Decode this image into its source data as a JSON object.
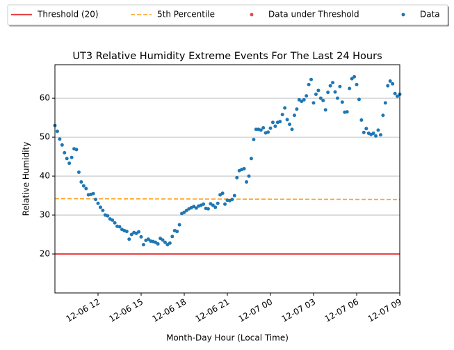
{
  "chart_data": {
    "type": "scatter",
    "title": "UT3 Relative Humidity Extreme Events For The Last 24 Hours",
    "x_label": "Month-Day Hour (Local Time)",
    "y_label": "Relative Humidity",
    "xlim": [
      "12-06 09",
      "12-07 09"
    ],
    "ylim": [
      10,
      68.6
    ],
    "xticks": [
      "12-06 12",
      "12-06 15",
      "12-06 18",
      "12-06 21",
      "12-07 00",
      "12-07 03",
      "12-07 06",
      "12-07 09"
    ],
    "yticks": [
      20,
      30,
      40,
      50,
      60
    ],
    "grid": true,
    "legend": "top",
    "series": [
      {
        "name": "Threshold (20)",
        "type": "line",
        "style": "solid",
        "color": "#e8474b",
        "x": [
          "12-06 09:00",
          "12-07 09:00"
        ],
        "values": [
          20,
          20
        ]
      },
      {
        "name": "5th Percentile",
        "type": "line",
        "style": "dashed",
        "color": "#ffa01c",
        "x": [
          "12-06 09:00",
          "12-07 09:00"
        ],
        "values": [
          34.2,
          34.0
        ]
      },
      {
        "name": "Data under Threshold",
        "type": "scatter",
        "color": "#e0504a",
        "x": [],
        "values": []
      },
      {
        "name": "Data",
        "type": "scatter",
        "color": "#1f77b4",
        "x": [
          "12-06 09:00",
          "12-06 09:10",
          "12-06 09:20",
          "12-06 09:30",
          "12-06 09:40",
          "12-06 09:50",
          "12-06 10:00",
          "12-06 10:10",
          "12-06 10:20",
          "12-06 10:30",
          "12-06 10:40",
          "12-06 10:50",
          "12-06 11:00",
          "12-06 11:10",
          "12-06 11:20",
          "12-06 11:30",
          "12-06 11:40",
          "12-06 11:50",
          "12-06 12:00",
          "12-06 12:10",
          "12-06 12:20",
          "12-06 12:30",
          "12-06 12:40",
          "12-06 12:50",
          "12-06 13:00",
          "12-06 13:10",
          "12-06 13:20",
          "12-06 13:30",
          "12-06 13:40",
          "12-06 13:50",
          "12-06 14:00",
          "12-06 14:10",
          "12-06 14:20",
          "12-06 14:30",
          "12-06 14:40",
          "12-06 14:50",
          "12-06 15:00",
          "12-06 15:10",
          "12-06 15:20",
          "12-06 15:30",
          "12-06 15:40",
          "12-06 15:50",
          "12-06 16:00",
          "12-06 16:10",
          "12-06 16:20",
          "12-06 16:30",
          "12-06 16:40",
          "12-06 16:50",
          "12-06 17:00",
          "12-06 17:10",
          "12-06 17:20",
          "12-06 17:30",
          "12-06 17:40",
          "12-06 17:50",
          "12-06 18:00",
          "12-06 18:10",
          "12-06 18:20",
          "12-06 18:30",
          "12-06 18:40",
          "12-06 18:50",
          "12-06 19:00",
          "12-06 19:10",
          "12-06 19:20",
          "12-06 19:30",
          "12-06 19:40",
          "12-06 19:50",
          "12-06 20:00",
          "12-06 20:10",
          "12-06 20:20",
          "12-06 20:30",
          "12-06 20:40",
          "12-06 20:50",
          "12-06 21:00",
          "12-06 21:10",
          "12-06 21:20",
          "12-06 21:30",
          "12-06 21:40",
          "12-06 21:50",
          "12-06 22:00",
          "12-06 22:10",
          "12-06 22:20",
          "12-06 22:30",
          "12-06 22:40",
          "12-06 22:50",
          "12-06 23:00",
          "12-06 23:10",
          "12-06 23:20",
          "12-06 23:30",
          "12-06 23:40",
          "12-06 23:50",
          "12-07 00:00",
          "12-07 00:10",
          "12-07 00:20",
          "12-07 00:30",
          "12-07 00:40",
          "12-07 00:50",
          "12-07 01:00",
          "12-07 01:10",
          "12-07 01:20",
          "12-07 01:30",
          "12-07 01:40",
          "12-07 01:50",
          "12-07 02:00",
          "12-07 02:10",
          "12-07 02:20",
          "12-07 02:30",
          "12-07 02:40",
          "12-07 02:50",
          "12-07 03:00",
          "12-07 03:10",
          "12-07 03:20",
          "12-07 03:30",
          "12-07 03:40",
          "12-07 03:50",
          "12-07 04:00",
          "12-07 04:10",
          "12-07 04:20",
          "12-07 04:30",
          "12-07 04:40",
          "12-07 04:50",
          "12-07 05:00",
          "12-07 05:10",
          "12-07 05:20",
          "12-07 05:30",
          "12-07 05:40",
          "12-07 05:50",
          "12-07 06:00",
          "12-07 06:10",
          "12-07 06:20",
          "12-07 06:30",
          "12-07 06:40",
          "12-07 06:50",
          "12-07 07:00",
          "12-07 07:10",
          "12-07 07:20",
          "12-07 07:30",
          "12-07 07:40",
          "12-07 07:50",
          "12-07 08:00",
          "12-07 08:10",
          "12-07 08:20",
          "12-07 08:30",
          "12-07 08:40",
          "12-07 08:50",
          "12-07 09:00"
        ],
        "values": [
          53,
          51.5,
          49.5,
          48,
          46,
          44.5,
          43.3,
          44.8,
          47,
          46.8,
          41,
          38.5,
          37.5,
          36.8,
          35.2,
          35.3,
          35.5,
          34,
          33,
          32,
          31.2,
          30,
          29.8,
          29,
          28.7,
          28,
          27.1,
          27,
          26.3,
          26,
          25.8,
          23.8,
          25,
          25.5,
          25.3,
          25.7,
          24.4,
          22.4,
          23.5,
          23.8,
          23.3,
          23.2,
          23,
          22.6,
          24,
          23.6,
          23,
          22.4,
          22.8,
          24.5,
          26,
          25.8,
          27.5,
          30.4,
          30.7,
          31.2,
          31.6,
          31.9,
          32.2,
          31.8,
          32.3,
          32.5,
          32.8,
          31.7,
          31.6,
          32.9,
          32.5,
          32,
          33,
          35.2,
          35.6,
          32.8,
          33.8,
          33.7,
          34,
          35,
          39.6,
          41.4,
          41.7,
          41.9,
          38.5,
          40,
          44.5,
          49.4,
          52,
          52,
          51.8,
          52.4,
          51.1,
          51.3,
          52.3,
          53.8,
          52.8,
          53.8,
          54,
          55.8,
          57.5,
          54.5,
          53.3,
          52,
          55.6,
          57.2,
          59.6,
          59.2,
          59.6,
          60.6,
          63.5,
          64.8,
          58.8,
          61,
          62,
          60,
          59.4,
          57,
          61.5,
          63.2,
          64,
          61.6,
          60,
          63,
          59,
          56.4,
          56.5,
          62.5,
          65,
          65.5,
          63.5,
          59.7,
          54.4,
          51.2,
          52.2,
          51,
          50.7,
          51,
          50.3,
          51.8,
          50.6,
          55.6,
          58.8,
          63.2,
          64.4,
          63.7,
          61.2,
          60.5,
          61
        ]
      }
    ]
  }
}
